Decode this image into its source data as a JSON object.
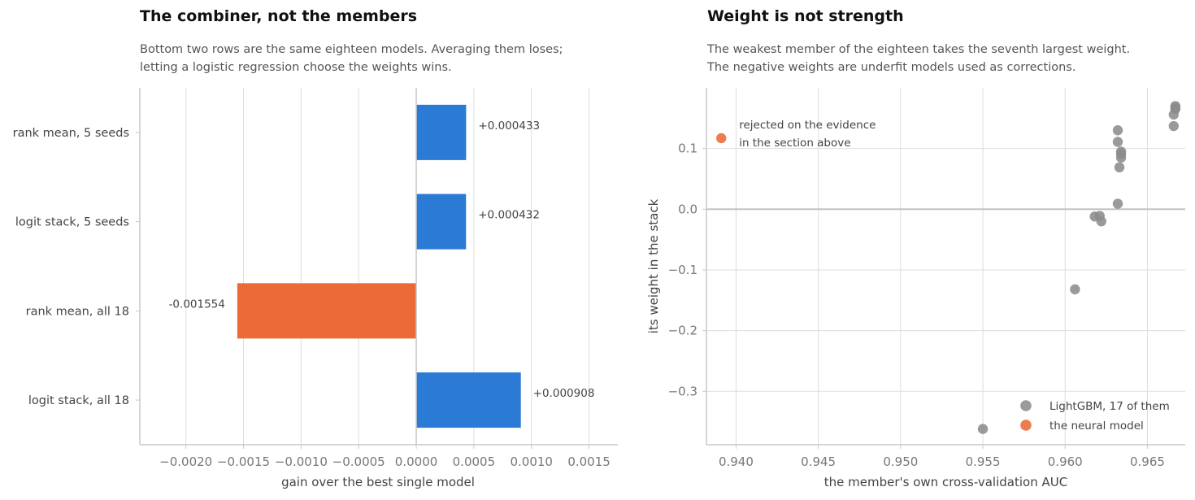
{
  "left": {
    "title": "The combiner, not the members",
    "subtitle_line1": "Bottom two rows are the same eighteen models. Averaging them loses;",
    "subtitle_line2": "letting a logistic regression choose the weights wins."
  },
  "right": {
    "title": "Weight is not strength",
    "subtitle_line1": "The weakest member of the eighteen takes the seventh largest weight.",
    "subtitle_line2": "The negative weights are underfit models used as corrections."
  },
  "colors": {
    "blue": "#2a7ad6",
    "orange": "#eb6a35",
    "gray": "#8c8c8a",
    "grid": "#dddddd",
    "axis": "#c8c8c8"
  },
  "chart_data": [
    {
      "type": "bar",
      "orientation": "horizontal",
      "categories": [
        "rank mean, 5 seeds",
        "logit stack, 5 seeds",
        "rank mean, all 18",
        "logit stack, all 18"
      ],
      "values": [
        0.000433,
        0.000432,
        -0.001554,
        0.000908
      ],
      "value_labels": [
        "+0.000433",
        "+0.000432",
        "-0.001554",
        "+0.000908"
      ],
      "bar_colors": [
        "blue",
        "blue",
        "orange",
        "blue"
      ],
      "xlabel": "gain over the best single model",
      "xlim": [
        -0.0024,
        0.00175
      ],
      "xticks": [
        -0.002,
        -0.0015,
        -0.001,
        -0.0005,
        0.0,
        0.0005,
        0.001,
        0.0015
      ],
      "xtick_labels": [
        "−0.0020",
        "−0.0015",
        "−0.0010",
        "−0.0005",
        "0.0000",
        "0.0005",
        "0.0010",
        "0.0015"
      ],
      "grid": "vertical"
    },
    {
      "type": "scatter",
      "xlabel": "the member's own cross-validation AUC",
      "ylabel": "its weight in the stack",
      "xlim": [
        0.9382,
        0.9673
      ],
      "ylim": [
        -0.388,
        0.2
      ],
      "xticks": [
        0.94,
        0.945,
        0.95,
        0.955,
        0.96,
        0.965
      ],
      "xtick_labels": [
        "0.940",
        "0.945",
        "0.950",
        "0.955",
        "0.960",
        "0.965"
      ],
      "yticks": [
        0.1,
        0.0,
        -0.1,
        -0.2,
        -0.3
      ],
      "ytick_labels": [
        "0.1",
        "0.0",
        "−0.1",
        "−0.2",
        "−0.3"
      ],
      "grid": "both",
      "series": [
        {
          "name": "LightGBM, 17 of them",
          "color": "gray",
          "points": [
            [
              0.9667,
              0.17
            ],
            [
              0.9667,
              0.167
            ],
            [
              0.9667,
              0.165
            ],
            [
              0.9666,
              0.156
            ],
            [
              0.9666,
              0.137
            ],
            [
              0.9632,
              0.13
            ],
            [
              0.9632,
              0.111
            ],
            [
              0.9634,
              0.095
            ],
            [
              0.9634,
              0.091
            ],
            [
              0.9634,
              0.085
            ],
            [
              0.9633,
              0.069
            ],
            [
              0.9632,
              0.009
            ],
            [
              0.9618,
              -0.012
            ],
            [
              0.9621,
              -0.011
            ],
            [
              0.9622,
              -0.02
            ],
            [
              0.9606,
              -0.132
            ],
            [
              0.955,
              -0.362
            ]
          ]
        },
        {
          "name": "the neural model",
          "color": "orange",
          "points": [
            [
              0.9391,
              0.117
            ]
          ]
        }
      ],
      "annotation": {
        "line1": "rejected on the evidence",
        "line2": "in the section above",
        "x": 0.9391,
        "y": 0.117
      },
      "legend_position": "bottom-right"
    }
  ]
}
